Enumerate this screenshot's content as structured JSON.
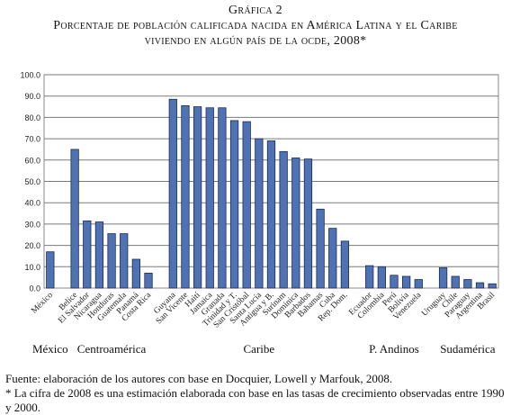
{
  "title": {
    "number": "Gráfica 2",
    "line1": "Porcentaje de población calificada nacida en América Latina y el Caribe",
    "line2": "viviendo en algún país de la ocde, 2008*"
  },
  "chart_data": {
    "type": "bar",
    "ylim": [
      0,
      100
    ],
    "yticks": [
      "0.0",
      "10.0",
      "20.0",
      "30.0",
      "40.0",
      "50.0",
      "60.0",
      "70.0",
      "80.0",
      "90.0",
      "100.0"
    ],
    "grid": true,
    "bar_color": "#4f72b5",
    "categories": [
      "México",
      "",
      "Belice",
      "El Salvador",
      "Nicaragua",
      "Honduras",
      "Guatemala",
      "Panamá",
      "Costa Rica",
      "",
      "Guyana",
      "San Vicente",
      "Haití",
      "Jamaica",
      "Granada",
      "Trinidad y T.",
      "San Cristóbal",
      "Santa Lucía",
      "Antigua y B.",
      "Surinam",
      "Dominica",
      "Barbados",
      "Bahamas",
      "Cuba",
      "Rep. Dom.",
      "",
      "Ecuador",
      "Colombia",
      "Perú",
      "Bolivia",
      "Venezuela",
      "",
      "Uruguay",
      "Chile",
      "Paraguay",
      "Argentina",
      "Brasil"
    ],
    "values": [
      17,
      null,
      65,
      31.5,
      31,
      25.5,
      25.5,
      13.5,
      7,
      null,
      88.5,
      85.5,
      85,
      84.5,
      84.5,
      78.5,
      78,
      70,
      69,
      64,
      61,
      60.5,
      37,
      28,
      22,
      null,
      10.5,
      10,
      6,
      5.5,
      4,
      null,
      9.5,
      5.5,
      4,
      2.5,
      2
    ],
    "groups": [
      {
        "label": "México",
        "start": 0,
        "end": 0
      },
      {
        "label": "Centroamérica",
        "start": 2,
        "end": 8
      },
      {
        "label": "Caribe",
        "start": 10,
        "end": 24
      },
      {
        "label": "P. Andinos",
        "start": 26,
        "end": 30
      },
      {
        "label": "Sudamérica",
        "start": 32,
        "end": 36
      }
    ]
  },
  "footnotes": {
    "source": "Fuente: elaboración de los autores con base en Docquier, Lowell y Marfouk, 2008.",
    "note": "* La cifra de 2008 es una estimación elaborada con base en las tasas de crecimiento observadas entre 1990 y 2000."
  }
}
